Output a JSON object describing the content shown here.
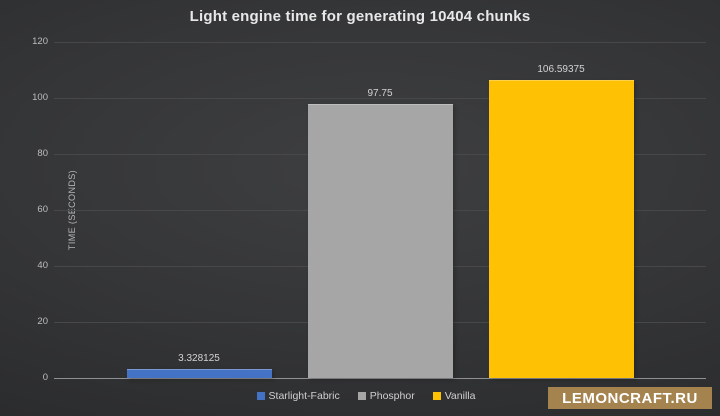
{
  "chart_data": {
    "type": "bar",
    "title": "Light engine time for generating 10404 chunks",
    "categories": [
      "Starlight-Fabric",
      "Phosphor",
      "Vanilla"
    ],
    "values": [
      3.328125,
      97.75,
      106.59375
    ],
    "value_labels": [
      "3.328125",
      "97.75",
      "106.59375"
    ],
    "bar_colors": [
      "#4472c4",
      "#a6a6a6",
      "#ffc104"
    ],
    "xlabel": "",
    "ylabel": "TIME (SECONDS)",
    "ylim": [
      0,
      120
    ],
    "ytick_step": 20,
    "yticks": [
      "0",
      "20",
      "40",
      "60",
      "80",
      "100",
      "120"
    ],
    "grid": true,
    "legend_position": "bottom",
    "legend_entries": [
      "Starlight-Fabric",
      "Phosphor",
      "Vanilla"
    ]
  },
  "watermark": {
    "text": "LEMONCRAFT.RU",
    "background": "#a5834f",
    "color": "#ffffff"
  },
  "theme": {
    "gridline_color": "#47484a",
    "baseline_color": "#8f9092",
    "title_color": "#e8e8e8",
    "label_color": "#d2d2d2"
  }
}
